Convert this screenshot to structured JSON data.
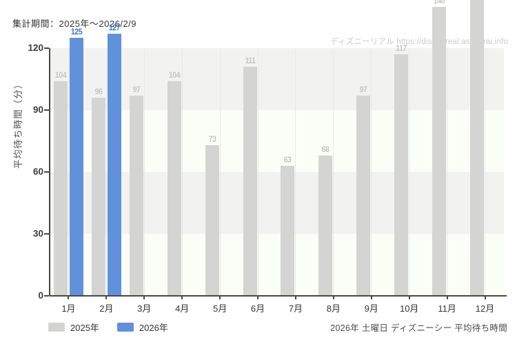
{
  "window": {
    "header_note": "集計期間：2025年～2026/2/9",
    "watermark": "ディズニーリアル https://disneyreal.asumirai.info",
    "footer_caption": "2026年 土曜日 ディズニーシー 平均待ち時間"
  },
  "chart_data": {
    "type": "bar",
    "title": "2026年 土曜日 ディズニーシー 平均待ち時間",
    "ylabel": "平均待ち時間（分）",
    "xlabel": "",
    "categories": [
      "1月",
      "2月",
      "3月",
      "4月",
      "5月",
      "6月",
      "7月",
      "8月",
      "9月",
      "10月",
      "11月",
      "12月"
    ],
    "y_ticks": [
      0,
      30,
      60,
      90,
      120
    ],
    "ylim": [
      0,
      143
    ],
    "grid": true,
    "legend_position": "bottom-left",
    "series": [
      {
        "name": "2025年",
        "color": "#d4d5d2",
        "label_color": "#c5c6c3",
        "values": [
          104,
          96,
          97,
          104,
          73,
          111,
          63,
          68,
          97,
          117,
          140,
          null
        ],
        "clipped_top_months": [
          "12月"
        ]
      },
      {
        "name": "2026年",
        "color": "#6191db",
        "label_color": "#3a78d3",
        "values": [
          125,
          127,
          null,
          null,
          null,
          null,
          null,
          null,
          null,
          null,
          null,
          null
        ],
        "clipped_top_months": []
      }
    ]
  },
  "colors": {
    "band_dark": "#f2f3f0",
    "band_light": "#fbfdf7",
    "vgrid": "#e9eae6",
    "axis": "#474747"
  }
}
